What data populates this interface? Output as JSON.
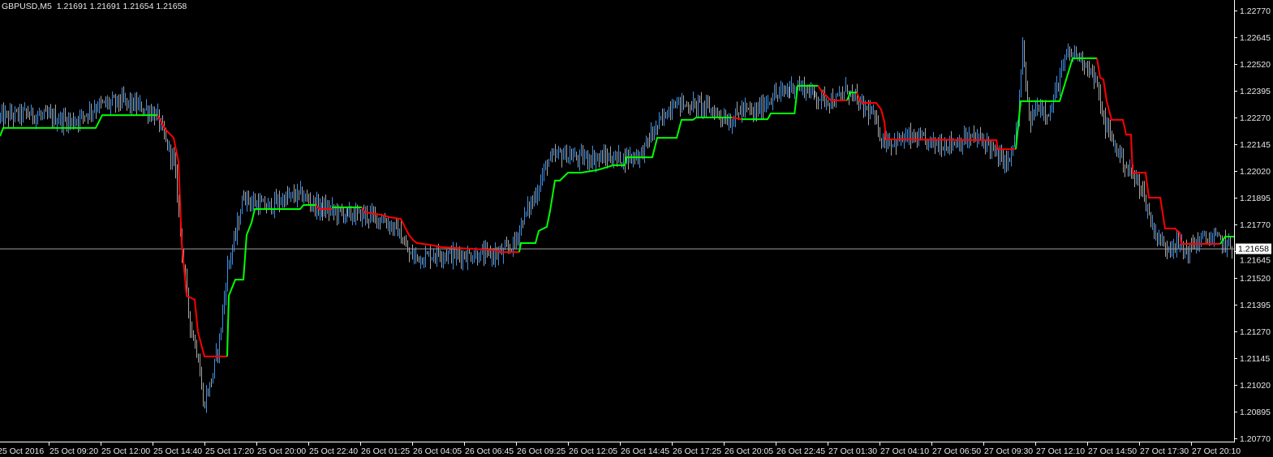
{
  "header": {
    "symbol": "GBPUSD,M5",
    "ohlc": "1.21691 1.21691 1.21654 1.21658"
  },
  "colors": {
    "background": "#000000",
    "foreground": "#e8e8e8",
    "bar_up": "#3f8fe4",
    "bar_down": "#a6a6a6",
    "indicator_up": "#00ff00",
    "indicator_down": "#ff0000",
    "current_price_line": "#a0a0a0"
  },
  "chart_data": {
    "type": "bar",
    "style": "ohlc-bars with stepped trend indicator",
    "ylim": [
      1.2077,
      1.2277
    ],
    "grid": false,
    "current_price": "1.21658",
    "y_ticks": [
      "1.22770",
      "1.22645",
      "1.22520",
      "1.22395",
      "1.22270",
      "1.22145",
      "1.22020",
      "1.21895",
      "1.21770",
      "1.21645",
      "1.21520",
      "1.21395",
      "1.21270",
      "1.21145",
      "1.21020",
      "1.20895",
      "1.20770"
    ],
    "x_ticks": [
      "25 Oct 2016",
      "25 Oct 09:20",
      "25 Oct 12:00",
      "25 Oct 14:40",
      "25 Oct 17:20",
      "25 Oct 20:00",
      "25 Oct 22:40",
      "26 Oct 01:25",
      "26 Oct 04:05",
      "26 Oct 06:45",
      "26 Oct 09:25",
      "26 Oct 12:05",
      "26 Oct 14:45",
      "26 Oct 17:25",
      "26 Oct 20:05",
      "26 Oct 22:45",
      "27 Oct 01:30",
      "27 Oct 04:10",
      "27 Oct 06:50",
      "27 Oct 09:30",
      "27 Oct 12:10",
      "27 Oct 14:50",
      "27 Oct 17:30",
      "27 Oct 20:10"
    ],
    "price_path": [
      [
        "25 Oct 06:50",
        1.2227
      ],
      [
        "25 Oct 08:05",
        1.22289
      ],
      [
        "25 Oct 09:20",
        1.2227
      ],
      [
        "25 Oct 10:35",
        1.22251
      ],
      [
        "25 Oct 11:50",
        1.22327
      ],
      [
        "25 Oct 13:05",
        1.22346
      ],
      [
        "25 Oct 14:20",
        1.22308
      ],
      [
        "25 Oct 14:55",
        1.2227
      ],
      [
        "25 Oct 15:20",
        1.22156
      ],
      [
        "25 Oct 15:45",
        1.22062
      ],
      [
        "25 Oct 16:00",
        1.21834
      ],
      [
        "25 Oct 16:15",
        1.21569
      ],
      [
        "25 Oct 16:35",
        1.21304
      ],
      [
        "25 Oct 17:00",
        1.21153
      ],
      [
        "25 Oct 17:15",
        1.20925
      ],
      [
        "25 Oct 17:40",
        1.21039
      ],
      [
        "25 Oct 18:05",
        1.21228
      ],
      [
        "25 Oct 18:30",
        1.21569
      ],
      [
        "25 Oct 18:55",
        1.21721
      ],
      [
        "25 Oct 19:20",
        1.2191
      ],
      [
        "25 Oct 19:45",
        1.21872
      ],
      [
        "25 Oct 20:35",
        1.21853
      ],
      [
        "25 Oct 21:25",
        1.21891
      ],
      [
        "25 Oct 22:15",
        1.2191
      ],
      [
        "25 Oct 23:05",
        1.21853
      ],
      [
        "25 Oct 23:55",
        1.21834
      ],
      [
        "26 Oct 00:45",
        1.21815
      ],
      [
        "26 Oct 01:40",
        1.21815
      ],
      [
        "26 Oct 02:30",
        1.21796
      ],
      [
        "26 Oct 03:20",
        1.2174
      ],
      [
        "26 Oct 03:55",
        1.21626
      ],
      [
        "26 Oct 04:35",
        1.21615
      ],
      [
        "26 Oct 05:25",
        1.21637
      ],
      [
        "26 Oct 06:15",
        1.21626
      ],
      [
        "26 Oct 07:05",
        1.21626
      ],
      [
        "26 Oct 07:55",
        1.21626
      ],
      [
        "26 Oct 08:45",
        1.21637
      ],
      [
        "26 Oct 09:20",
        1.21683
      ],
      [
        "26 Oct 09:45",
        1.21796
      ],
      [
        "26 Oct 10:25",
        1.2191
      ],
      [
        "26 Oct 11:00",
        1.22062
      ],
      [
        "26 Oct 11:40",
        1.221
      ],
      [
        "26 Oct 12:30",
        1.22081
      ],
      [
        "26 Oct 13:20",
        1.22081
      ],
      [
        "26 Oct 14:10",
        1.22081
      ],
      [
        "26 Oct 15:00",
        1.22081
      ],
      [
        "26 Oct 15:50",
        1.221
      ],
      [
        "26 Oct 16:15",
        1.22175
      ],
      [
        "26 Oct 16:50",
        1.22251
      ],
      [
        "26 Oct 17:30",
        1.22346
      ],
      [
        "26 Oct 18:05",
        1.22327
      ],
      [
        "26 Oct 18:55",
        1.22327
      ],
      [
        "26 Oct 19:45",
        1.22289
      ],
      [
        "26 Oct 20:25",
        1.22251
      ],
      [
        "26 Oct 21:00",
        1.22308
      ],
      [
        "26 Oct 21:40",
        1.22289
      ],
      [
        "26 Oct 22:30",
        1.22365
      ],
      [
        "26 Oct 23:05",
        1.22384
      ],
      [
        "26 Oct 23:45",
        1.22422
      ],
      [
        "27 Oct 00:20",
        1.22403
      ],
      [
        "27 Oct 01:00",
        1.22365
      ],
      [
        "27 Oct 01:55",
        1.22346
      ],
      [
        "27 Oct 02:30",
        1.22403
      ],
      [
        "27 Oct 03:10",
        1.22327
      ],
      [
        "27 Oct 03:45",
        1.22289
      ],
      [
        "27 Oct 04:15",
        1.22175
      ],
      [
        "27 Oct 04:50",
        1.22156
      ],
      [
        "27 Oct 05:40",
        1.22175
      ],
      [
        "27 Oct 06:30",
        1.22156
      ],
      [
        "27 Oct 07:20",
        1.22145
      ],
      [
        "27 Oct 08:10",
        1.22156
      ],
      [
        "27 Oct 09:00",
        1.22175
      ],
      [
        "27 Oct 09:40",
        1.22156
      ],
      [
        "27 Oct 10:15",
        1.22081
      ],
      [
        "27 Oct 10:50",
        1.22062
      ],
      [
        "27 Oct 11:15",
        1.22251
      ],
      [
        "27 Oct 11:30",
        1.22592
      ],
      [
        "27 Oct 11:50",
        1.22251
      ],
      [
        "27 Oct 12:20",
        1.22327
      ],
      [
        "27 Oct 12:55",
        1.22289
      ],
      [
        "27 Oct 13:20",
        1.2244
      ],
      [
        "27 Oct 13:45",
        1.22554
      ],
      [
        "27 Oct 14:10",
        1.22573
      ],
      [
        "27 Oct 14:50",
        1.22516
      ],
      [
        "27 Oct 15:15",
        1.2244
      ],
      [
        "27 Oct 15:40",
        1.22251
      ],
      [
        "27 Oct 16:15",
        1.22137
      ],
      [
        "27 Oct 16:55",
        1.22024
      ],
      [
        "27 Oct 17:35",
        1.21948
      ],
      [
        "27 Oct 18:10",
        1.21759
      ],
      [
        "27 Oct 18:45",
        1.21664
      ],
      [
        "27 Oct 19:20",
        1.21683
      ],
      [
        "27 Oct 19:55",
        1.21645
      ],
      [
        "27 Oct 20:40",
        1.21702
      ],
      [
        "27 Oct 21:30",
        1.21702
      ],
      [
        "27 Oct 22:20",
        1.21658
      ]
    ],
    "indicator": [
      {
        "trend": "up",
        "points": [
          [
            "25 Oct 06:50",
            1.22183
          ],
          [
            "25 Oct 07:00",
            1.22221
          ],
          [
            "25 Oct 11:45",
            1.22221
          ],
          [
            "25 Oct 12:05",
            1.22281
          ],
          [
            "25 Oct 14:55",
            1.22281
          ]
        ]
      },
      {
        "trend": "down",
        "points": [
          [
            "25 Oct 14:55",
            1.22281
          ],
          [
            "25 Oct 15:20",
            1.22213
          ],
          [
            "25 Oct 15:45",
            1.22175
          ],
          [
            "25 Oct 16:00",
            1.22062
          ],
          [
            "25 Oct 16:10",
            1.21683
          ],
          [
            "25 Oct 16:25",
            1.21437
          ],
          [
            "25 Oct 16:50",
            1.21418
          ],
          [
            "25 Oct 17:00",
            1.21266
          ],
          [
            "25 Oct 17:20",
            1.21153
          ],
          [
            "25 Oct 18:30",
            1.21153
          ]
        ]
      },
      {
        "trend": "up",
        "points": [
          [
            "25 Oct 18:30",
            1.21153
          ],
          [
            "25 Oct 18:35",
            1.21437
          ],
          [
            "25 Oct 18:55",
            1.21512
          ],
          [
            "25 Oct 19:20",
            1.21512
          ],
          [
            "25 Oct 19:30",
            1.21721
          ],
          [
            "25 Oct 19:45",
            1.21778
          ],
          [
            "25 Oct 19:55",
            1.21842
          ],
          [
            "25 Oct 22:15",
            1.21842
          ],
          [
            "25 Oct 22:25",
            1.21861
          ],
          [
            "25 Oct 23:05",
            1.21861
          ]
        ]
      },
      {
        "trend": "down",
        "points": [
          [
            "25 Oct 23:05",
            1.21861
          ],
          [
            "25 Oct 23:15",
            1.21842
          ],
          [
            "25 Oct 23:55",
            1.21842
          ]
        ]
      },
      {
        "trend": "up",
        "points": [
          [
            "25 Oct 23:55",
            1.2185
          ],
          [
            "26 Oct 01:30",
            1.2185
          ]
        ]
      },
      {
        "trend": "down",
        "points": [
          [
            "26 Oct 01:30",
            1.2185
          ],
          [
            "26 Oct 01:40",
            1.21827
          ],
          [
            "26 Oct 02:30",
            1.21815
          ],
          [
            "26 Oct 02:55",
            1.21804
          ],
          [
            "26 Oct 03:30",
            1.21796
          ],
          [
            "26 Oct 03:55",
            1.21721
          ],
          [
            "26 Oct 04:10",
            1.21694
          ],
          [
            "26 Oct 04:20",
            1.21683
          ],
          [
            "26 Oct 05:00",
            1.21675
          ],
          [
            "26 Oct 05:35",
            1.21664
          ],
          [
            "26 Oct 06:50",
            1.21658
          ],
          [
            "26 Oct 08:30",
            1.21649
          ],
          [
            "26 Oct 08:35",
            1.21641
          ],
          [
            "26 Oct 09:35",
            1.21641
          ]
        ]
      },
      {
        "trend": "up",
        "points": [
          [
            "26 Oct 09:35",
            1.21641
          ],
          [
            "26 Oct 09:40",
            1.21683
          ],
          [
            "26 Oct 10:25",
            1.21683
          ],
          [
            "26 Oct 10:35",
            1.2174
          ],
          [
            "26 Oct 11:00",
            1.21759
          ],
          [
            "26 Oct 11:10",
            1.21834
          ],
          [
            "26 Oct 11:25",
            1.21975
          ],
          [
            "26 Oct 11:40",
            1.21975
          ],
          [
            "26 Oct 12:05",
            1.22012
          ],
          [
            "26 Oct 12:45",
            1.22012
          ],
          [
            "26 Oct 13:35",
            1.22024
          ],
          [
            "26 Oct 14:25",
            1.22047
          ],
          [
            "26 Oct 15:00",
            1.22047
          ],
          [
            "26 Oct 15:05",
            1.22084
          ],
          [
            "26 Oct 16:25",
            1.22084
          ],
          [
            "26 Oct 16:40",
            1.22175
          ],
          [
            "26 Oct 17:40",
            1.22175
          ],
          [
            "26 Oct 17:55",
            1.22259
          ],
          [
            "26 Oct 18:30",
            1.22259
          ],
          [
            "26 Oct 18:40",
            1.2227
          ],
          [
            "26 Oct 20:30",
            1.2227
          ]
        ]
      },
      {
        "trend": "down",
        "points": [
          [
            "26 Oct 20:30",
            1.2227
          ],
          [
            "26 Oct 21:00",
            1.22262
          ]
        ]
      },
      {
        "trend": "up",
        "points": [
          [
            "26 Oct 21:00",
            1.22262
          ],
          [
            "26 Oct 22:20",
            1.22262
          ],
          [
            "26 Oct 22:30",
            1.22289
          ],
          [
            "26 Oct 23:45",
            1.22289
          ],
          [
            "26 Oct 23:55",
            1.22418
          ],
          [
            "27 Oct 01:00",
            1.22418
          ]
        ]
      },
      {
        "trend": "down",
        "points": [
          [
            "27 Oct 01:00",
            1.22418
          ],
          [
            "27 Oct 01:10",
            1.22395
          ],
          [
            "27 Oct 01:30",
            1.22365
          ],
          [
            "27 Oct 01:40",
            1.2235
          ],
          [
            "27 Oct 02:30",
            1.2235
          ]
        ]
      },
      {
        "trend": "up",
        "points": [
          [
            "27 Oct 02:30",
            1.2235
          ],
          [
            "27 Oct 02:40",
            1.22387
          ],
          [
            "27 Oct 03:00",
            1.22387
          ]
        ]
      },
      {
        "trend": "down",
        "points": [
          [
            "27 Oct 03:00",
            1.22387
          ],
          [
            "27 Oct 03:10",
            1.22346
          ],
          [
            "27 Oct 03:20",
            1.22338
          ],
          [
            "27 Oct 04:00",
            1.22338
          ],
          [
            "27 Oct 04:15",
            1.22308
          ],
          [
            "27 Oct 04:25",
            1.22251
          ],
          [
            "27 Oct 04:30",
            1.22168
          ],
          [
            "27 Oct 10:10",
            1.22164
          ],
          [
            "27 Oct 10:15",
            1.22122
          ],
          [
            "27 Oct 11:10",
            1.22122
          ]
        ]
      },
      {
        "trend": "up",
        "points": [
          [
            "27 Oct 11:10",
            1.22122
          ],
          [
            "27 Oct 11:25",
            1.22346
          ],
          [
            "27 Oct 13:25",
            1.22346
          ],
          [
            "27 Oct 14:05",
            1.22547
          ],
          [
            "27 Oct 15:20",
            1.22547
          ]
        ]
      },
      {
        "trend": "down",
        "points": [
          [
            "27 Oct 15:20",
            1.22547
          ],
          [
            "27 Oct 15:30",
            1.22456
          ],
          [
            "27 Oct 15:40",
            1.22448
          ],
          [
            "27 Oct 15:50",
            1.22346
          ],
          [
            "27 Oct 16:05",
            1.22259
          ],
          [
            "27 Oct 16:40",
            1.22259
          ],
          [
            "27 Oct 16:50",
            1.2219
          ],
          [
            "27 Oct 17:05",
            1.2219
          ],
          [
            "27 Oct 17:10",
            1.22012
          ],
          [
            "27 Oct 17:50",
            1.22012
          ],
          [
            "27 Oct 18:00",
            1.21895
          ],
          [
            "27 Oct 18:35",
            1.21895
          ],
          [
            "27 Oct 18:50",
            1.21751
          ],
          [
            "27 Oct 19:20",
            1.21751
          ],
          [
            "27 Oct 19:35",
            1.21732
          ],
          [
            "27 Oct 19:40",
            1.21679
          ],
          [
            "27 Oct 21:40",
            1.21679
          ]
        ]
      },
      {
        "trend": "up",
        "points": [
          [
            "27 Oct 21:40",
            1.21679
          ],
          [
            "27 Oct 21:55",
            1.21713
          ],
          [
            "27 Oct 22:25",
            1.21713
          ]
        ]
      }
    ]
  }
}
